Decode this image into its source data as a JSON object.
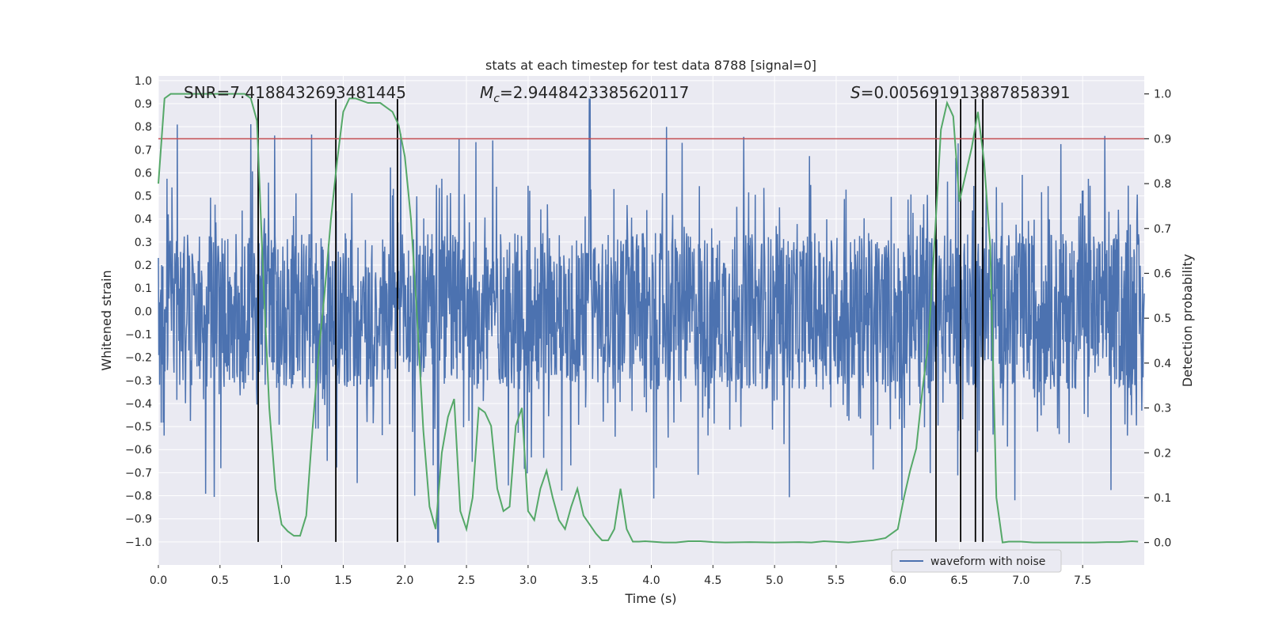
{
  "chart_data": {
    "type": "line",
    "title": "stats at each timestep for test data 8788 [signal=0]",
    "xlabel": "Time (s)",
    "ylabel": "Whitened strain",
    "y2label": "Detection probability",
    "xlim": [
      0.0,
      8.0
    ],
    "ylim": [
      -1.1,
      1.02
    ],
    "y2lim": [
      -0.05,
      1.04
    ],
    "x_ticks": [
      0.0,
      0.5,
      1.0,
      1.5,
      2.0,
      2.5,
      3.0,
      3.5,
      4.0,
      4.5,
      5.0,
      5.5,
      6.0,
      6.5,
      7.0,
      7.5
    ],
    "x_tick_labels": [
      "0.0",
      "0.5",
      "1.0",
      "1.5",
      "2.0",
      "2.5",
      "3.0",
      "3.5",
      "4.0",
      "4.5",
      "5.0",
      "5.5",
      "6.0",
      "6.5",
      "7.0",
      "7.5"
    ],
    "y_ticks": [
      1.0,
      0.9,
      0.8,
      0.7,
      0.6,
      0.5,
      0.4,
      0.3,
      0.2,
      0.1,
      0.0,
      -0.1,
      -0.2,
      -0.3,
      -0.4,
      -0.5,
      -0.6,
      -0.7,
      -0.8,
      -0.9,
      -1.0
    ],
    "y_tick_labels": [
      "1.0",
      "0.9",
      "0.8",
      "0.7",
      "0.6",
      "0.5",
      "0.4",
      "0.3",
      "0.2",
      "0.1",
      "0.0",
      "−0.1",
      "−0.2",
      "−0.3",
      "−0.4",
      "−0.5",
      "−0.6",
      "−0.7",
      "−0.8",
      "−0.9",
      "−1.0"
    ],
    "y2_ticks": [
      1.0,
      0.9,
      0.8,
      0.7,
      0.6,
      0.5,
      0.4,
      0.3,
      0.2,
      0.1,
      0.0
    ],
    "y2_tick_labels": [
      "1.0",
      "0.9",
      "0.8",
      "0.7",
      "0.6",
      "0.5",
      "0.4",
      "0.3",
      "0.2",
      "0.1",
      "0.0"
    ],
    "annotations": {
      "snr": "SNR=7.4188432693481445",
      "mc_symbol": "M",
      "mc_sub": "c",
      "mc_value": "=2.9448423385620117",
      "s_symbol": "S",
      "s_value": "=0.005691913887858391"
    },
    "legend": {
      "label": "waveform with noise",
      "location": "lower-right"
    },
    "threshold": 0.9,
    "vlines": [
      0.81,
      1.44,
      1.94,
      6.31,
      6.51,
      6.63,
      6.69
    ],
    "vline_ymin": -1.0,
    "vline_ymax": 0.92,
    "waveform": {
      "name": "waveform with noise",
      "x_range": [
        0.0,
        8.0
      ],
      "typical_amplitude": 0.34,
      "peak_max": 0.92,
      "peak_min": -1.0
    },
    "detection_probability": {
      "x": [
        0.0,
        0.05,
        0.1,
        0.2,
        0.3,
        0.4,
        0.5,
        0.6,
        0.7,
        0.75,
        0.8,
        0.85,
        0.9,
        0.95,
        1.0,
        1.05,
        1.1,
        1.15,
        1.2,
        1.25,
        1.3,
        1.35,
        1.4,
        1.45,
        1.5,
        1.55,
        1.6,
        1.7,
        1.8,
        1.9,
        1.95,
        2.0,
        2.05,
        2.1,
        2.15,
        2.2,
        2.25,
        2.3,
        2.35,
        2.4,
        2.45,
        2.5,
        2.55,
        2.6,
        2.65,
        2.7,
        2.75,
        2.8,
        2.85,
        2.9,
        2.95,
        3.0,
        3.05,
        3.1,
        3.15,
        3.2,
        3.25,
        3.3,
        3.35,
        3.4,
        3.45,
        3.5,
        3.55,
        3.6,
        3.65,
        3.7,
        3.75,
        3.8,
        3.85,
        3.9,
        3.95,
        4.0,
        4.1,
        4.2,
        4.3,
        4.4,
        4.5,
        4.6,
        4.8,
        5.0,
        5.2,
        5.3,
        5.4,
        5.6,
        5.8,
        5.9,
        6.0,
        6.05,
        6.1,
        6.15,
        6.2,
        6.25,
        6.3,
        6.35,
        6.4,
        6.45,
        6.5,
        6.55,
        6.6,
        6.65,
        6.7,
        6.75,
        6.8,
        6.85,
        6.9,
        7.0,
        7.1,
        7.2,
        7.3,
        7.5,
        7.6,
        7.7,
        7.8,
        7.9,
        7.95
      ],
      "values": [
        0.8,
        0.99,
        1.0,
        1.0,
        1.0,
        1.0,
        1.0,
        1.0,
        1.0,
        0.99,
        0.94,
        0.6,
        0.3,
        0.12,
        0.04,
        0.025,
        0.015,
        0.015,
        0.06,
        0.25,
        0.42,
        0.56,
        0.72,
        0.85,
        0.96,
        0.99,
        0.99,
        0.98,
        0.98,
        0.96,
        0.93,
        0.86,
        0.72,
        0.5,
        0.25,
        0.08,
        0.03,
        0.2,
        0.28,
        0.32,
        0.07,
        0.03,
        0.1,
        0.3,
        0.29,
        0.26,
        0.12,
        0.07,
        0.08,
        0.26,
        0.3,
        0.07,
        0.05,
        0.12,
        0.16,
        0.1,
        0.05,
        0.03,
        0.08,
        0.12,
        0.06,
        0.04,
        0.02,
        0.005,
        0.005,
        0.03,
        0.12,
        0.03,
        0.002,
        0.002,
        0.003,
        0.002,
        0.0,
        0.0,
        0.003,
        0.003,
        0.001,
        0.0,
        0.001,
        0.0,
        0.001,
        0.0,
        0.003,
        0.0,
        0.005,
        0.01,
        0.03,
        0.1,
        0.16,
        0.21,
        0.34,
        0.45,
        0.68,
        0.92,
        0.98,
        0.95,
        0.76,
        0.82,
        0.88,
        0.96,
        0.85,
        0.66,
        0.1,
        0.0,
        0.002,
        0.002,
        0.0,
        0.0,
        0.0,
        0.0,
        0.0,
        0.001,
        0.001,
        0.003,
        0.002
      ]
    },
    "colors": {
      "waveform": "#4c72b0",
      "probability": "#55a868",
      "threshold": "#c44e52",
      "vline": "#000000",
      "axes_bg": "#eaeaf2",
      "grid": "#ffffff"
    }
  }
}
